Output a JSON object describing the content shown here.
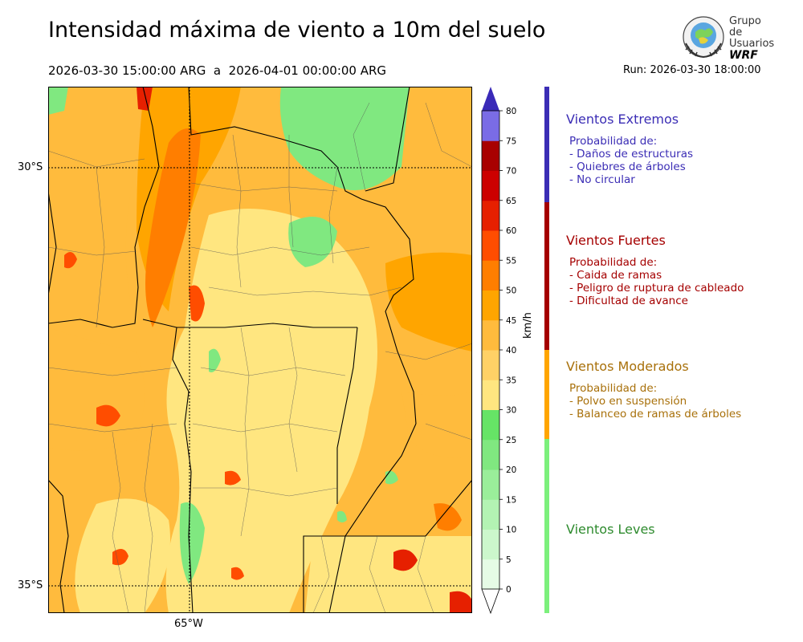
{
  "title": "Intensidad máxima de viento a 10m del suelo",
  "period": "2026-03-30 15:00:00 ARG  a  2026-04-01 00:00:00 ARG",
  "run": "Run: 2026-03-30 18:00:00",
  "logo": {
    "line1": "Grupo de",
    "line2": "Usuarios",
    "line3": "WRF"
  },
  "map": {
    "lat_labels": [
      "30°S",
      "35°S"
    ],
    "lon_labels": [
      "65°W"
    ]
  },
  "colorbar": {
    "unit": "km/h",
    "ticks": [
      "0",
      "5",
      "10",
      "15",
      "20",
      "25",
      "30",
      "35",
      "40",
      "45",
      "50",
      "55",
      "60",
      "65",
      "70",
      "75",
      "80"
    ],
    "colors": [
      "#e6fce6",
      "#ccf7cc",
      "#b3f3b3",
      "#9aee9a",
      "#80e880",
      "#66e466",
      "#ffe680",
      "#ffd166",
      "#ffbb3d",
      "#ffa500",
      "#ff7e00",
      "#ff4d00",
      "#e62000",
      "#cc0000",
      "#a80000",
      "#7a6ce6",
      "#5b48d6",
      "#3a2ab8"
    ],
    "under_color": "#ffffff",
    "over_color": "#3a2ab8"
  },
  "categories": [
    {
      "title": "Vientos Extremos",
      "color": "#3b2db5",
      "lines": [
        "Probabilidad de:",
        "- Daños de estructuras",
        "- Quiebres de árboles",
        "- No circular"
      ]
    },
    {
      "title": "Vientos Fuertes",
      "color": "#a50000",
      "lines": [
        "Probabilidad de:",
        "- Caida de ramas",
        "- Peligro de ruptura de cableado",
        "- Dificultad de avance"
      ]
    },
    {
      "title": "Vientos Moderados",
      "color": "#a8700a",
      "lines": [
        "Probabilidad de:",
        "- Polvo en suspensión",
        "- Balanceo de ramas de árboles"
      ]
    },
    {
      "title": "Vientos Leves",
      "color": "#2e8b2e",
      "lines": []
    }
  ],
  "category_bar_colors": [
    "#3b2db5",
    "#a50000",
    "#ffa500",
    "#7cf07c"
  ]
}
